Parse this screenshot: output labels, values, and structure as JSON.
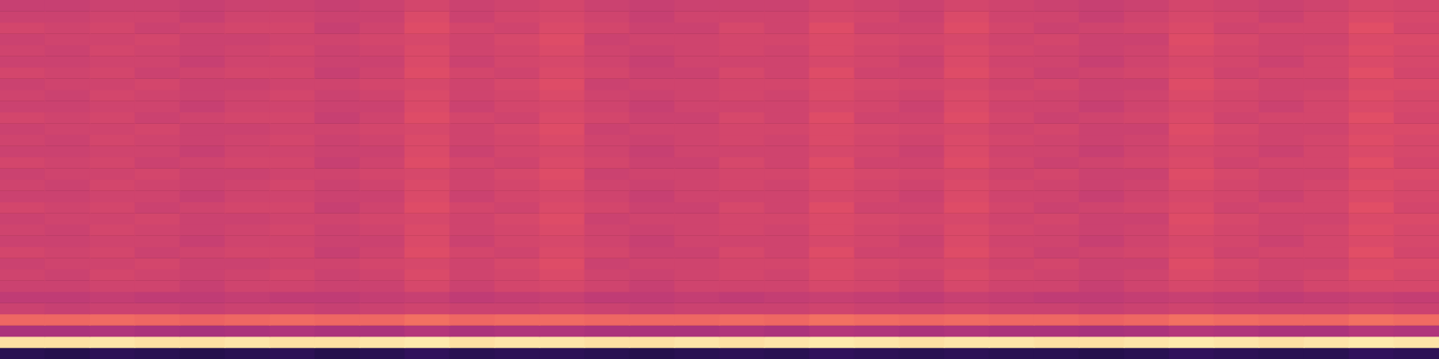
{
  "chart_data": {
    "type": "heatmap",
    "tick_labels": false,
    "grid": false,
    "zlim": [
      0,
      100
    ],
    "cells": [
      [
        55,
        55,
        56,
        56,
        55,
        56,
        56,
        55,
        56,
        58,
        56,
        57,
        58,
        56,
        55,
        56,
        56,
        56,
        58,
        57,
        56,
        58,
        57,
        56,
        55,
        56,
        58,
        57,
        56,
        57,
        59,
        58
      ],
      [
        56,
        56,
        57,
        57,
        55,
        57,
        57,
        56,
        56,
        60,
        56,
        58,
        59,
        57,
        55,
        57,
        57,
        57,
        59,
        58,
        56,
        60,
        57,
        57,
        55,
        57,
        59,
        58,
        56,
        58,
        60,
        59
      ],
      [
        58,
        57,
        58,
        56,
        57,
        58,
        58,
        55,
        57,
        61,
        58,
        57,
        60,
        58,
        56,
        56,
        59,
        57,
        61,
        57,
        57,
        61,
        58,
        56,
        57,
        58,
        60,
        57,
        58,
        58,
        62,
        58
      ],
      [
        56,
        57,
        57,
        58,
        56,
        56,
        57,
        57,
        58,
        59,
        57,
        59,
        61,
        56,
        57,
        57,
        58,
        58,
        60,
        59,
        58,
        59,
        57,
        58,
        56,
        56,
        61,
        59,
        57,
        57,
        60,
        60
      ],
      [
        57,
        56,
        58,
        57,
        56,
        57,
        58,
        56,
        57,
        60,
        57,
        58,
        60,
        57,
        56,
        57,
        58,
        57,
        60,
        58,
        57,
        60,
        58,
        57,
        56,
        57,
        60,
        58,
        57,
        58,
        61,
        59
      ],
      [
        56,
        56,
        57,
        57,
        55,
        57,
        57,
        56,
        56,
        60,
        56,
        58,
        59,
        57,
        55,
        57,
        57,
        57,
        59,
        58,
        56,
        60,
        57,
        57,
        55,
        57,
        59,
        58,
        56,
        58,
        60,
        59
      ],
      [
        58,
        57,
        58,
        56,
        57,
        58,
        58,
        55,
        57,
        61,
        58,
        57,
        60,
        58,
        56,
        56,
        59,
        57,
        61,
        57,
        57,
        61,
        58,
        56,
        57,
        58,
        60,
        57,
        58,
        58,
        62,
        58
      ],
      [
        56,
        57,
        57,
        58,
        56,
        56,
        57,
        57,
        58,
        59,
        57,
        59,
        61,
        56,
        57,
        57,
        58,
        58,
        60,
        59,
        58,
        59,
        57,
        58,
        56,
        56,
        61,
        59,
        57,
        57,
        60,
        60
      ],
      [
        57,
        56,
        58,
        57,
        56,
        57,
        58,
        56,
        57,
        60,
        57,
        58,
        60,
        57,
        56,
        57,
        58,
        57,
        60,
        58,
        57,
        60,
        58,
        57,
        56,
        57,
        60,
        58,
        57,
        58,
        61,
        59
      ],
      [
        56,
        56,
        57,
        57,
        55,
        57,
        57,
        56,
        56,
        60,
        56,
        58,
        59,
        57,
        55,
        57,
        57,
        57,
        59,
        58,
        56,
        60,
        57,
        57,
        55,
        57,
        59,
        58,
        56,
        58,
        60,
        59
      ],
      [
        58,
        57,
        58,
        56,
        57,
        58,
        58,
        55,
        57,
        61,
        58,
        57,
        60,
        58,
        56,
        56,
        59,
        57,
        61,
        57,
        57,
        61,
        58,
        56,
        57,
        58,
        60,
        57,
        58,
        58,
        62,
        58
      ],
      [
        56,
        57,
        57,
        58,
        56,
        56,
        57,
        57,
        58,
        59,
        57,
        59,
        61,
        56,
        57,
        57,
        58,
        58,
        60,
        59,
        58,
        59,
        57,
        58,
        56,
        56,
        61,
        59,
        57,
        57,
        60,
        60
      ],
      [
        57,
        56,
        58,
        57,
        56,
        57,
        58,
        56,
        57,
        60,
        57,
        58,
        60,
        57,
        56,
        57,
        58,
        57,
        60,
        58,
        57,
        60,
        58,
        57,
        56,
        57,
        60,
        58,
        57,
        58,
        61,
        59
      ],
      [
        56,
        56,
        57,
        57,
        55,
        57,
        57,
        56,
        56,
        60,
        56,
        58,
        59,
        57,
        55,
        57,
        57,
        57,
        59,
        58,
        56,
        60,
        57,
        57,
        55,
        57,
        59,
        58,
        56,
        58,
        60,
        59
      ],
      [
        58,
        57,
        58,
        56,
        57,
        58,
        58,
        55,
        57,
        61,
        58,
        57,
        60,
        58,
        56,
        56,
        59,
        57,
        61,
        57,
        57,
        61,
        58,
        56,
        57,
        58,
        60,
        57,
        58,
        58,
        62,
        58
      ],
      [
        56,
        57,
        57,
        58,
        56,
        56,
        57,
        57,
        58,
        59,
        57,
        59,
        61,
        56,
        57,
        57,
        58,
        58,
        60,
        59,
        58,
        59,
        57,
        58,
        56,
        56,
        61,
        59,
        57,
        57,
        60,
        60
      ],
      [
        57,
        56,
        58,
        57,
        56,
        57,
        58,
        56,
        57,
        60,
        57,
        58,
        60,
        57,
        56,
        57,
        58,
        57,
        60,
        58,
        57,
        60,
        58,
        57,
        56,
        57,
        60,
        58,
        57,
        58,
        61,
        59
      ],
      [
        56,
        56,
        57,
        57,
        55,
        57,
        57,
        56,
        56,
        60,
        56,
        58,
        59,
        57,
        55,
        57,
        57,
        57,
        59,
        58,
        56,
        60,
        57,
        57,
        55,
        57,
        59,
        58,
        56,
        58,
        60,
        59
      ],
      [
        58,
        57,
        58,
        56,
        57,
        58,
        58,
        55,
        57,
        61,
        58,
        57,
        60,
        58,
        56,
        56,
        59,
        57,
        61,
        57,
        57,
        61,
        58,
        56,
        57,
        58,
        60,
        57,
        58,
        58,
        62,
        58
      ],
      [
        56,
        57,
        57,
        58,
        56,
        56,
        57,
        57,
        58,
        59,
        57,
        59,
        61,
        56,
        57,
        57,
        58,
        58,
        60,
        59,
        58,
        59,
        57,
        58,
        56,
        56,
        61,
        59,
        57,
        57,
        60,
        60
      ],
      [
        57,
        56,
        58,
        57,
        56,
        57,
        58,
        56,
        57,
        60,
        57,
        58,
        60,
        57,
        56,
        57,
        58,
        57,
        60,
        58,
        57,
        60,
        58,
        57,
        56,
        57,
        60,
        58,
        57,
        58,
        61,
        59
      ],
      [
        56,
        56,
        57,
        57,
        55,
        57,
        57,
        56,
        56,
        60,
        56,
        58,
        59,
        57,
        55,
        57,
        57,
        57,
        59,
        58,
        56,
        60,
        57,
        57,
        55,
        57,
        59,
        58,
        56,
        58,
        60,
        59
      ],
      [
        58,
        57,
        58,
        56,
        57,
        58,
        58,
        55,
        57,
        61,
        58,
        57,
        60,
        58,
        56,
        56,
        59,
        57,
        61,
        57,
        57,
        61,
        58,
        56,
        57,
        58,
        60,
        57,
        58,
        58,
        62,
        58
      ],
      [
        56,
        57,
        57,
        58,
        56,
        56,
        57,
        57,
        58,
        59,
        57,
        59,
        61,
        56,
        57,
        57,
        58,
        58,
        60,
        59,
        58,
        59,
        57,
        58,
        56,
        56,
        61,
        59,
        57,
        57,
        60,
        60
      ],
      [
        57,
        56,
        58,
        57,
        56,
        57,
        58,
        56,
        57,
        60,
        57,
        58,
        60,
        57,
        56,
        57,
        58,
        57,
        60,
        58,
        57,
        60,
        58,
        57,
        56,
        57,
        60,
        58,
        57,
        58,
        61,
        59
      ],
      [
        56,
        56,
        57,
        57,
        55,
        57,
        57,
        56,
        56,
        59,
        56,
        58,
        59,
        57,
        55,
        57,
        57,
        57,
        59,
        58,
        56,
        59,
        57,
        57,
        55,
        57,
        59,
        58,
        56,
        58,
        59,
        59
      ],
      [
        53,
        53,
        54,
        53,
        53,
        54,
        53,
        53,
        54,
        55,
        53,
        54,
        55,
        53,
        53,
        54,
        53,
        54,
        55,
        54,
        53,
        55,
        54,
        53,
        53,
        54,
        55,
        54,
        53,
        54,
        55,
        54
      ],
      [
        56,
        55,
        56,
        56,
        55,
        56,
        56,
        55,
        56,
        57,
        56,
        56,
        57,
        56,
        55,
        56,
        56,
        56,
        57,
        56,
        56,
        57,
        56,
        56,
        55,
        56,
        57,
        56,
        56,
        56,
        57,
        56
      ],
      [
        68,
        68,
        69,
        68,
        67,
        68,
        69,
        68,
        68,
        70,
        68,
        69,
        69,
        68,
        68,
        68,
        69,
        68,
        70,
        69,
        68,
        69,
        68,
        68,
        67,
        68,
        70,
        69,
        68,
        68,
        70,
        69
      ],
      [
        48,
        48,
        49,
        48,
        47,
        48,
        49,
        48,
        48,
        50,
        48,
        49,
        49,
        48,
        48,
        48,
        49,
        48,
        50,
        49,
        48,
        49,
        48,
        48,
        47,
        48,
        50,
        49,
        48,
        48,
        50,
        49
      ],
      [
        94,
        94,
        95,
        94,
        94,
        95,
        94,
        94,
        95,
        96,
        94,
        95,
        95,
        94,
        94,
        95,
        94,
        95,
        96,
        95,
        94,
        95,
        95,
        94,
        94,
        95,
        96,
        95,
        94,
        95,
        96,
        95
      ],
      [
        16,
        15,
        17,
        16,
        15,
        16,
        17,
        15,
        16,
        18,
        16,
        17,
        17,
        16,
        15,
        16,
        17,
        16,
        18,
        17,
        16,
        17,
        16,
        16,
        15,
        16,
        18,
        17,
        16,
        16,
        18,
        17
      ]
    ]
  }
}
